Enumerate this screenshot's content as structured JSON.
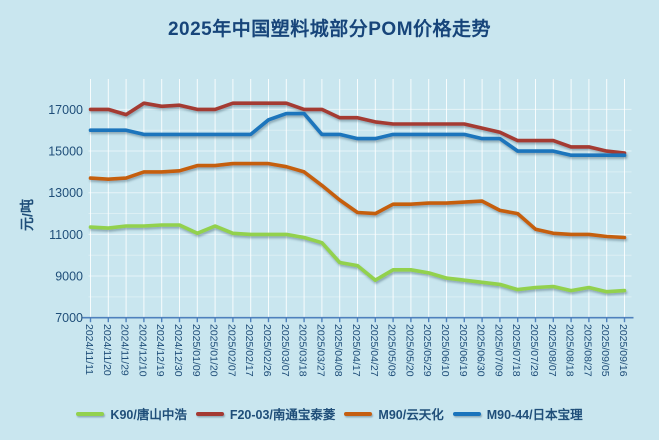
{
  "chart_data": {
    "type": "line",
    "title": "2025年中国塑料城部分POM价格走势",
    "xlabel": "",
    "ylabel": "元/吨",
    "ylim": [
      7000,
      17000
    ],
    "yticks": [
      7000,
      9000,
      11000,
      13000,
      15000,
      17000
    ],
    "grid": true,
    "legend_position": "bottom",
    "x": [
      "2024/11/11",
      "2024/11/20",
      "2024/11/29",
      "2024/12/10",
      "2024/12/19",
      "2024/12/30",
      "2025/01/09",
      "2025/01/20",
      "2025/02/07",
      "2025/02/17",
      "2025/02/26",
      "2025/03/07",
      "2025/03/18",
      "2025/03/27",
      "2025/04/08",
      "2025/04/17",
      "2025/04/27",
      "2025/05/09",
      "2025/05/20",
      "2025/05/29",
      "2025/06/10",
      "2025/06/19",
      "2025/06/30",
      "2025/07/09",
      "2025/07/18",
      "2025/07/29",
      "2025/08/07",
      "2025/08/18",
      "2025/08/27",
      "2025/09/05",
      "2025/09/16"
    ],
    "series": [
      {
        "name": "K90/唐山中浩",
        "color": "#92d14e",
        "values": [
          11350,
          11300,
          11400,
          11400,
          11450,
          11450,
          11050,
          11400,
          11050,
          11000,
          11000,
          11000,
          10850,
          10600,
          9650,
          9500,
          8800,
          9300,
          9300,
          9150,
          8900,
          8800,
          8700,
          8600,
          8350,
          8450,
          8500,
          8300,
          8450,
          8250,
          8300
        ]
      },
      {
        "name": "F20-03/南通宝泰菱",
        "color": "#a43a33",
        "values": [
          17000,
          17000,
          16750,
          17300,
          17150,
          17200,
          17000,
          17000,
          17300,
          17300,
          17300,
          17300,
          17000,
          17000,
          16600,
          16600,
          16400,
          16300,
          16300,
          16300,
          16300,
          16300,
          16100,
          15900,
          15500,
          15500,
          15500,
          15200,
          15200,
          15000,
          14900
        ]
      },
      {
        "name": "M90/云天化",
        "color": "#c55f11",
        "values": [
          13700,
          13650,
          13700,
          14000,
          14000,
          14050,
          14300,
          14300,
          14400,
          14400,
          14400,
          14250,
          14000,
          13350,
          12650,
          12050,
          12000,
          12450,
          12450,
          12500,
          12500,
          12550,
          12600,
          12150,
          12000,
          11250,
          11050,
          11000,
          11000,
          10900,
          10850
        ]
      },
      {
        "name": "M90-44/日本宝理",
        "color": "#1a74bc",
        "values": [
          16000,
          16000,
          16000,
          15800,
          15800,
          15800,
          15800,
          15800,
          15800,
          15800,
          16500,
          16800,
          16800,
          15800,
          15800,
          15600,
          15600,
          15800,
          15800,
          15800,
          15800,
          15800,
          15600,
          15600,
          15000,
          15000,
          15000,
          14800,
          14800,
          14800,
          14800
        ]
      }
    ]
  },
  "colors": {
    "background": "#c9e6ef",
    "text": "#1f4e79",
    "title": "#17457a",
    "axis": "#4f81bd",
    "grid": "#ffffff"
  }
}
